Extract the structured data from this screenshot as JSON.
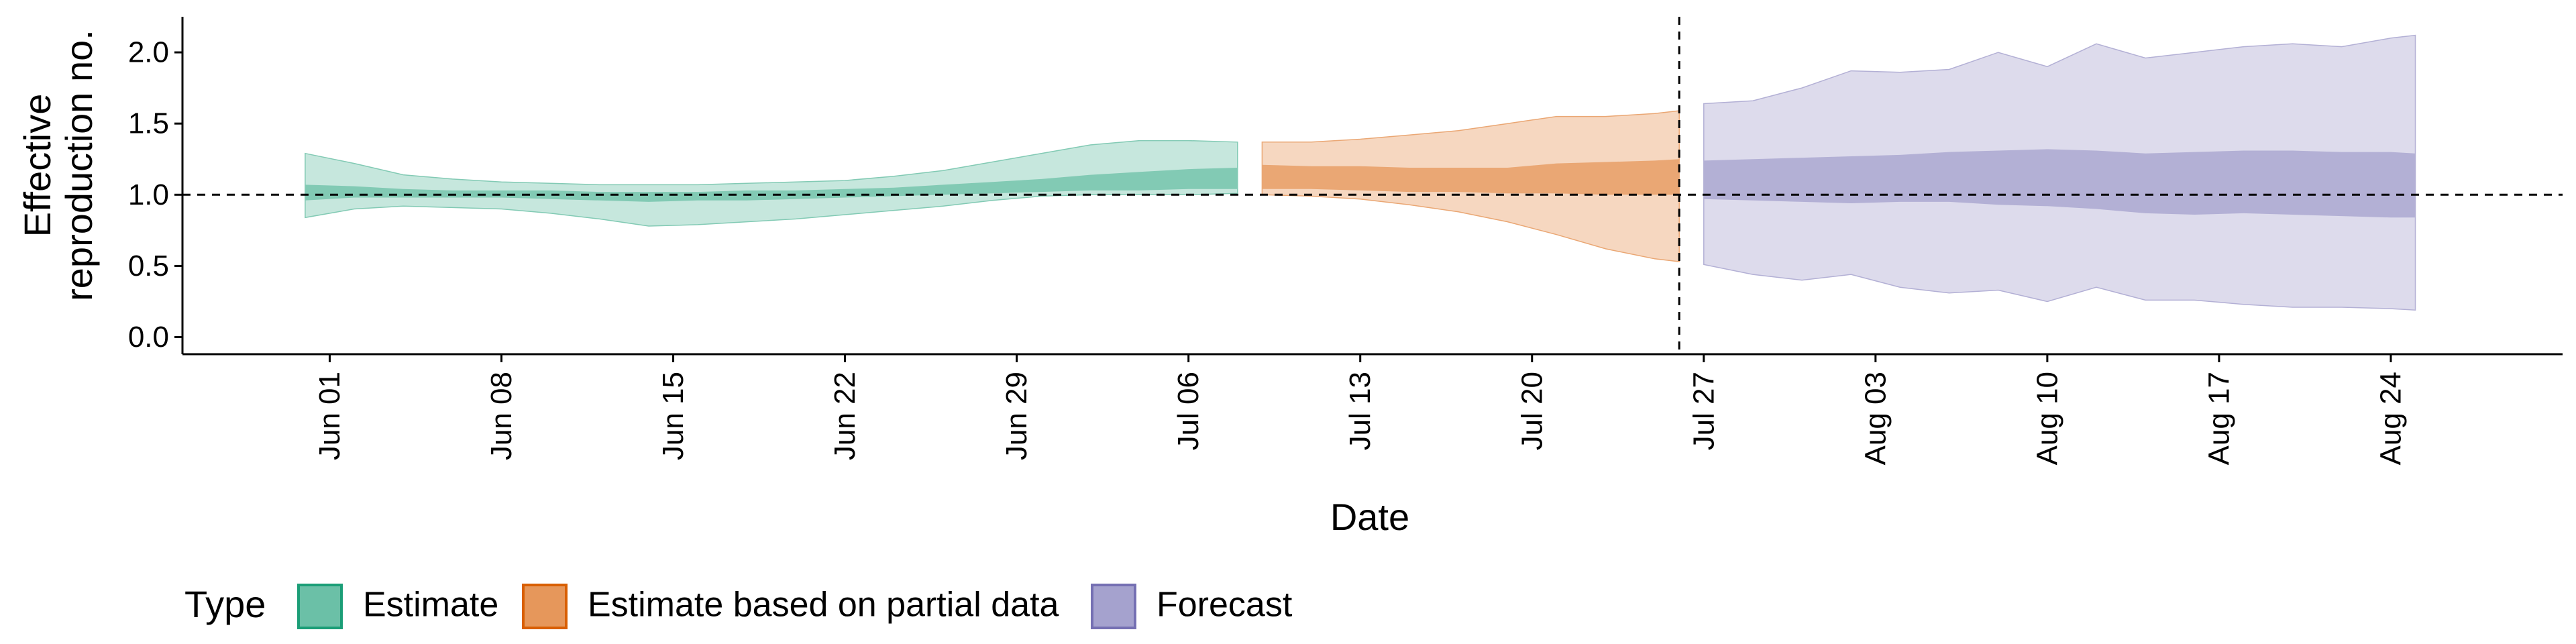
{
  "chart_data": {
    "type": "area",
    "xlabel": "Date",
    "ylabel_lines": [
      "Effective",
      "reproduction no."
    ],
    "ylim": [
      -0.12,
      2.25
    ],
    "y_ticks": [
      0.0,
      0.5,
      1.0,
      1.5,
      2.0
    ],
    "y_tick_labels": [
      "0.0",
      "0.5",
      "1.0",
      "1.5",
      "2.0"
    ],
    "x_range": [
      "2020-05-26",
      "2020-08-31"
    ],
    "x_ticks": [
      "2020-06-01",
      "2020-06-08",
      "2020-06-15",
      "2020-06-22",
      "2020-06-29",
      "2020-07-06",
      "2020-07-13",
      "2020-07-20",
      "2020-07-27",
      "2020-08-03",
      "2020-08-10",
      "2020-08-17",
      "2020-08-24"
    ],
    "x_tick_labels": [
      "Jun 01",
      "Jun 08",
      "Jun 15",
      "Jun 22",
      "Jun 29",
      "Jul 06",
      "Jul 13",
      "Jul 20",
      "Jul 27",
      "Aug 03",
      "Aug 10",
      "Aug 17",
      "Aug 24"
    ],
    "reference_hline": 1.0,
    "reference_vline": "2020-07-26",
    "grid": false,
    "legend": {
      "title": "Type",
      "position": "bottom-left"
    },
    "series": [
      {
        "name": "Estimate",
        "color": "#1b9e77",
        "dates": [
          "2020-05-31",
          "2020-06-02",
          "2020-06-04",
          "2020-06-06",
          "2020-06-08",
          "2020-06-10",
          "2020-06-12",
          "2020-06-14",
          "2020-06-16",
          "2020-06-18",
          "2020-06-20",
          "2020-06-22",
          "2020-06-24",
          "2020-06-26",
          "2020-06-28",
          "2020-06-30",
          "2020-07-02",
          "2020-07-04",
          "2020-07-06",
          "2020-07-08"
        ],
        "lower_90": [
          0.84,
          0.9,
          0.92,
          0.91,
          0.9,
          0.87,
          0.83,
          0.78,
          0.79,
          0.81,
          0.83,
          0.86,
          0.89,
          0.92,
          0.96,
          0.99,
          1.0,
          1.0,
          1.0,
          1.01
        ],
        "upper_90": [
          1.29,
          1.22,
          1.14,
          1.11,
          1.09,
          1.08,
          1.07,
          1.07,
          1.07,
          1.08,
          1.09,
          1.1,
          1.13,
          1.17,
          1.23,
          1.29,
          1.35,
          1.38,
          1.38,
          1.37
        ],
        "lower_50": [
          0.96,
          0.98,
          0.98,
          0.98,
          0.98,
          0.97,
          0.96,
          0.95,
          0.96,
          0.96,
          0.97,
          0.98,
          0.99,
          1.0,
          1.01,
          1.02,
          1.03,
          1.03,
          1.04,
          1.04
        ],
        "upper_50": [
          1.07,
          1.06,
          1.04,
          1.03,
          1.03,
          1.03,
          1.02,
          1.02,
          1.02,
          1.03,
          1.03,
          1.04,
          1.05,
          1.07,
          1.09,
          1.11,
          1.14,
          1.16,
          1.18,
          1.19
        ]
      },
      {
        "name": "Estimate based on partial data",
        "color": "#d95f02",
        "dates": [
          "2020-07-09",
          "2020-07-11",
          "2020-07-13",
          "2020-07-15",
          "2020-07-17",
          "2020-07-19",
          "2020-07-21",
          "2020-07-23",
          "2020-07-25",
          "2020-07-26"
        ],
        "lower_90": [
          1.0,
          0.99,
          0.97,
          0.93,
          0.88,
          0.81,
          0.72,
          0.62,
          0.55,
          0.53
        ],
        "upper_90": [
          1.37,
          1.37,
          1.39,
          1.42,
          1.45,
          1.5,
          1.55,
          1.55,
          1.57,
          1.59
        ],
        "lower_50": [
          1.04,
          1.04,
          1.03,
          1.02,
          1.02,
          1.01,
          1.01,
          1.0,
          1.0,
          1.0
        ],
        "upper_50": [
          1.21,
          1.2,
          1.2,
          1.19,
          1.19,
          1.19,
          1.22,
          1.23,
          1.24,
          1.25
        ]
      },
      {
        "name": "Forecast",
        "color": "#7570b3",
        "dates": [
          "2020-07-27",
          "2020-07-29",
          "2020-07-31",
          "2020-08-02",
          "2020-08-04",
          "2020-08-06",
          "2020-08-08",
          "2020-08-10",
          "2020-08-12",
          "2020-08-14",
          "2020-08-16",
          "2020-08-18",
          "2020-08-20",
          "2020-08-22",
          "2020-08-24",
          "2020-08-25"
        ],
        "lower_90": [
          0.51,
          0.44,
          0.4,
          0.44,
          0.35,
          0.31,
          0.33,
          0.25,
          0.35,
          0.26,
          0.26,
          0.23,
          0.21,
          0.21,
          0.2,
          0.19
        ],
        "upper_90": [
          1.64,
          1.66,
          1.75,
          1.87,
          1.86,
          1.88,
          2.0,
          1.9,
          2.06,
          1.96,
          2.0,
          2.04,
          2.06,
          2.04,
          2.1,
          2.12
        ],
        "lower_50": [
          0.97,
          0.96,
          0.95,
          0.94,
          0.95,
          0.95,
          0.93,
          0.92,
          0.9,
          0.87,
          0.86,
          0.87,
          0.86,
          0.85,
          0.84,
          0.84
        ],
        "upper_50": [
          1.24,
          1.25,
          1.26,
          1.27,
          1.28,
          1.3,
          1.31,
          1.32,
          1.31,
          1.29,
          1.3,
          1.31,
          1.31,
          1.3,
          1.3,
          1.29
        ]
      }
    ]
  }
}
